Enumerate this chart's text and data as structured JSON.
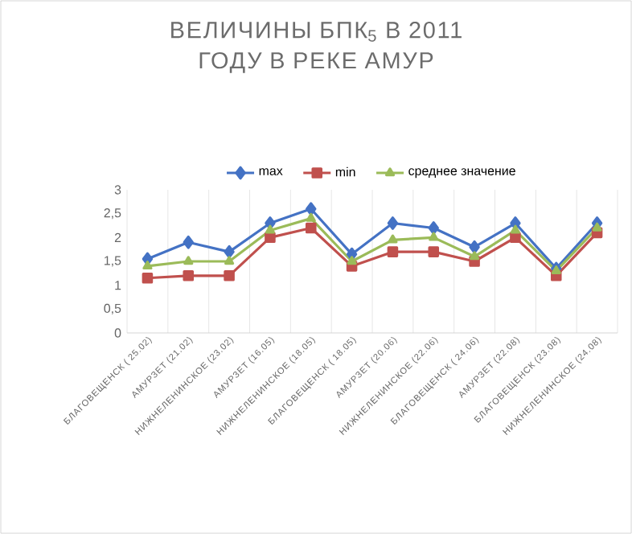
{
  "chart_data": {
    "type": "line",
    "title": "ВЕЛИЧИНЫ БПК$_{5}$ В 2011 ГОДУ В РЕКЕ АМУР",
    "categories": [
      "БЛАГОВЕЩЕНСК ( 25.02)",
      "АМУРЗЕТ (21.02)",
      "НИЖНЕЛЕНИНСКОЕ (23.02)",
      "АМУРЗЕТ (16.05)",
      "НИЖНЕЛЕНИНСКОЕ (18.05)",
      "БЛАГОВЕЩЕНСК ( 18.05)",
      "АМУРЗЕТ (20.06)",
      "НИЖНЕЛЕНИНСКОЕ (22.06)",
      "БЛАГОВЕЩЕНСК ( 24.06)",
      "АМУРЗЕТ (22.08)",
      "БЛАГОВЕЩЕНСК (23.08)",
      "НИЖНЕЛЕНИНСКОЕ (24.08)"
    ],
    "series": [
      {
        "name": "max",
        "color": "#4472c4",
        "marker": "diamond",
        "values": [
          1.55,
          1.9,
          1.7,
          2.3,
          2.6,
          1.65,
          2.3,
          2.2,
          1.8,
          2.3,
          1.35,
          2.3
        ]
      },
      {
        "name": "min",
        "color": "#c0504d",
        "marker": "square",
        "values": [
          1.15,
          1.2,
          1.2,
          2.0,
          2.2,
          1.4,
          1.7,
          1.7,
          1.5,
          2.0,
          1.2,
          2.1
        ]
      },
      {
        "name": "среднее значение",
        "color": "#9bbb59",
        "marker": "triangle",
        "values": [
          1.4,
          1.5,
          1.5,
          2.15,
          2.4,
          1.5,
          1.95,
          2.0,
          1.6,
          2.15,
          1.3,
          2.2
        ]
      }
    ],
    "ylim": [
      0,
      3
    ],
    "yticks": [
      0,
      {
        "value": 0.5,
        "label": "0,5"
      },
      1,
      {
        "value": 1.5,
        "label": "1,5"
      },
      2,
      {
        "value": 2.5,
        "label": "2,5"
      },
      3
    ],
    "grid": "x",
    "legend": "top"
  }
}
